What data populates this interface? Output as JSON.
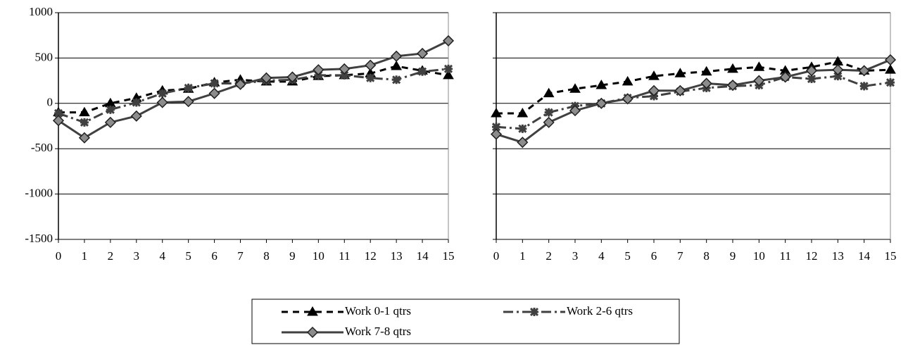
{
  "chart_data": [
    {
      "type": "line",
      "x": [
        0,
        1,
        2,
        3,
        4,
        5,
        6,
        7,
        8,
        9,
        10,
        11,
        12,
        13,
        14,
        15
      ],
      "xlim": [
        0,
        15
      ],
      "xticks": [
        0,
        1,
        2,
        3,
        4,
        5,
        6,
        7,
        8,
        9,
        10,
        11,
        12,
        13,
        14,
        15
      ],
      "ylim": [
        -1500,
        1000
      ],
      "yticks": [
        -1500,
        -1000,
        -500,
        0,
        500,
        1000
      ],
      "grid": true,
      "show_ytick_labels": true,
      "series": [
        {
          "name": "Work 0-1 qtrs",
          "color": "#000000",
          "marker": "triangle",
          "line_style": "dashed",
          "values": [
            -100,
            -100,
            0,
            60,
            140,
            160,
            230,
            260,
            240,
            240,
            300,
            310,
            330,
            410,
            360,
            310
          ]
        },
        {
          "name": "Work 2-6 qtrs",
          "color": "#404040",
          "marker": "star",
          "line_style": "dash-dot",
          "values": [
            -110,
            -210,
            -70,
            10,
            110,
            170,
            220,
            220,
            250,
            260,
            310,
            310,
            280,
            260,
            350,
            380
          ]
        },
        {
          "name": "Work 7-8 qtrs",
          "color": "#404040",
          "marker": "diamond",
          "line_style": "solid",
          "values": [
            -190,
            -380,
            -210,
            -140,
            10,
            20,
            110,
            210,
            280,
            290,
            370,
            380,
            420,
            520,
            550,
            690
          ]
        }
      ]
    },
    {
      "type": "line",
      "x": [
        0,
        1,
        2,
        3,
        4,
        5,
        6,
        7,
        8,
        9,
        10,
        11,
        12,
        13,
        14,
        15
      ],
      "xlim": [
        0,
        15
      ],
      "xticks": [
        0,
        1,
        2,
        3,
        4,
        5,
        6,
        7,
        8,
        9,
        10,
        11,
        12,
        13,
        14,
        15
      ],
      "ylim": [
        -1500,
        1000
      ],
      "yticks": [
        -1500,
        -1000,
        -500,
        0,
        500,
        1000
      ],
      "grid": true,
      "show_ytick_labels": false,
      "series": [
        {
          "name": "Work 0-1 qtrs",
          "color": "#000000",
          "marker": "triangle",
          "line_style": "dashed",
          "values": [
            -110,
            -110,
            110,
            160,
            200,
            240,
            300,
            330,
            350,
            380,
            400,
            360,
            400,
            460,
            360,
            370
          ]
        },
        {
          "name": "Work 2-6 qtrs",
          "color": "#404040",
          "marker": "star",
          "line_style": "dash-dot",
          "values": [
            -260,
            -280,
            -100,
            -30,
            0,
            60,
            80,
            130,
            170,
            190,
            200,
            290,
            270,
            300,
            190,
            230
          ]
        },
        {
          "name": "Work 7-8 qtrs",
          "color": "#404040",
          "marker": "diamond",
          "line_style": "solid",
          "values": [
            -340,
            -430,
            -210,
            -80,
            0,
            50,
            140,
            140,
            220,
            200,
            250,
            290,
            360,
            370,
            360,
            480
          ]
        }
      ]
    }
  ]
}
